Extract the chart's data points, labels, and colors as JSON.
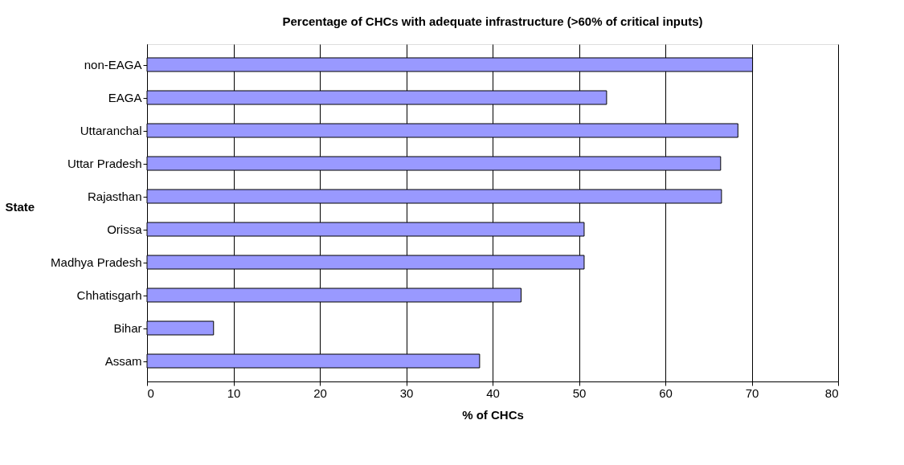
{
  "chart_data": {
    "type": "bar",
    "orientation": "horizontal",
    "title": "Percentage of CHCs with adequate infrastructure (>60% of critical inputs)",
    "xlabel": "% of CHCs",
    "ylabel": "State",
    "categories": [
      "non-EAGA",
      "EAGA",
      "Uttaranchal",
      "Uttar Pradesh",
      "Rajasthan",
      "Orissa",
      "Madhya Pradesh",
      "Chhatisgarh",
      "Bihar",
      "Assam"
    ],
    "values": [
      70.1,
      53.2,
      68.4,
      66.4,
      66.5,
      50.6,
      50.6,
      43.3,
      7.7,
      38.5
    ],
    "color": "#9999ff",
    "xlim": [
      0,
      80
    ],
    "xticks": [
      0,
      10,
      20,
      30,
      40,
      50,
      60,
      70,
      80
    ],
    "grid": "x"
  }
}
